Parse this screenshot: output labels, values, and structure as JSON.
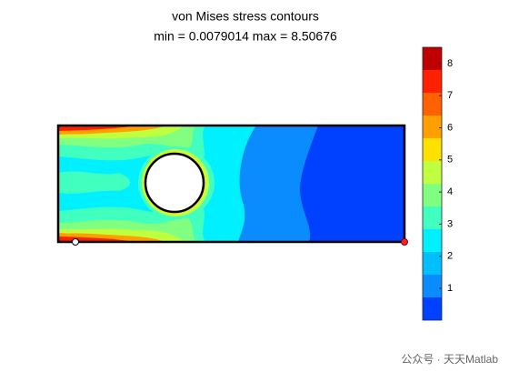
{
  "chart_data": {
    "type": "contour",
    "title": "von Mises stress contours",
    "subtitle": "min = 0.0079014 max = 8.50676",
    "colorbar": {
      "lim": [
        0.0079014,
        8.50676
      ],
      "ticks": [
        1,
        2,
        3,
        4,
        5,
        6,
        7,
        8
      ],
      "levels": [
        0.0079014,
        0.716,
        1.424,
        2.133,
        2.841,
        3.549,
        4.257,
        4.966,
        5.674,
        6.382,
        7.09,
        7.799,
        8.50676
      ],
      "colors": [
        "#0040ff",
        "#0a8cff",
        "#00bfff",
        "#00f0ff",
        "#40ffbf",
        "#80ff80",
        "#c0ff40",
        "#ffe000",
        "#ffa000",
        "#ff6000",
        "#ff2000",
        "#c00000"
      ]
    }
  },
  "watermark": "公众号 · 天天Matlab"
}
